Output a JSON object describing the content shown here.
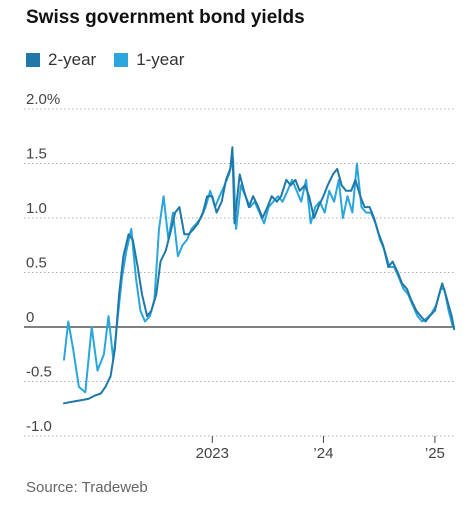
{
  "title": "Swiss government bond yields",
  "source": "Source: Tradeweb",
  "chart_data": {
    "type": "line",
    "title": "Swiss government bond yields",
    "xlabel": "",
    "ylabel": "",
    "ylim": [
      -1.0,
      2.0
    ],
    "xlim": [
      "2021-09-01",
      "2025-03-08"
    ],
    "y_ticks": [
      {
        "value": 2.0,
        "label": "2.0%"
      },
      {
        "value": 1.5,
        "label": "1.5"
      },
      {
        "value": 1.0,
        "label": "1.0"
      },
      {
        "value": 0.5,
        "label": "0.5"
      },
      {
        "value": 0,
        "label": "0"
      },
      {
        "value": -0.5,
        "label": "-0.5"
      },
      {
        "value": -1.0,
        "label": "-1.0"
      }
    ],
    "x_ticks": [
      {
        "date": "2023-01-01",
        "label": "2023"
      },
      {
        "date": "2024-01-01",
        "label": "’24"
      },
      {
        "date": "2025-01-01",
        "label": "’25"
      }
    ],
    "grid": "horizontal",
    "legend_position": "top-left",
    "series": [
      {
        "name": "2-year",
        "color": "#1f78a8",
        "points": [
          [
            "2021-09-01",
            -0.7
          ],
          [
            "2021-09-20",
            -0.69
          ],
          [
            "2021-10-10",
            -0.68
          ],
          [
            "2021-10-31",
            -0.67
          ],
          [
            "2021-11-20",
            -0.66
          ],
          [
            "2021-12-10",
            -0.63
          ],
          [
            "2021-12-31",
            -0.61
          ],
          [
            "2022-01-15",
            -0.55
          ],
          [
            "2022-02-01",
            -0.45
          ],
          [
            "2022-02-15",
            -0.2
          ],
          [
            "2022-03-01",
            0.3
          ],
          [
            "2022-03-15",
            0.65
          ],
          [
            "2022-04-01",
            0.85
          ],
          [
            "2022-04-15",
            0.8
          ],
          [
            "2022-05-01",
            0.55
          ],
          [
            "2022-05-15",
            0.3
          ],
          [
            "2022-06-01",
            0.1
          ],
          [
            "2022-06-15",
            0.15
          ],
          [
            "2022-07-01",
            0.3
          ],
          [
            "2022-07-15",
            0.6
          ],
          [
            "2022-08-01",
            0.7
          ],
          [
            "2022-08-15",
            0.85
          ],
          [
            "2022-09-01",
            1.05
          ],
          [
            "2022-09-15",
            1.1
          ],
          [
            "2022-10-01",
            0.85
          ],
          [
            "2022-10-15",
            0.85
          ],
          [
            "2022-11-01",
            0.9
          ],
          [
            "2022-11-15",
            0.95
          ],
          [
            "2022-12-01",
            1.05
          ],
          [
            "2022-12-15",
            1.2
          ],
          [
            "2023-01-01",
            1.2
          ],
          [
            "2023-01-15",
            1.05
          ],
          [
            "2023-02-01",
            1.15
          ],
          [
            "2023-02-15",
            1.35
          ],
          [
            "2023-03-01",
            1.45
          ],
          [
            "2023-03-08",
            1.65
          ],
          [
            "2023-03-15",
            0.95
          ],
          [
            "2023-04-01",
            1.4
          ],
          [
            "2023-04-15",
            1.25
          ],
          [
            "2023-05-01",
            1.1
          ],
          [
            "2023-05-15",
            1.2
          ],
          [
            "2023-06-01",
            1.1
          ],
          [
            "2023-06-15",
            1.0
          ],
          [
            "2023-07-01",
            1.1
          ],
          [
            "2023-07-15",
            1.2
          ],
          [
            "2023-08-01",
            1.15
          ],
          [
            "2023-08-15",
            1.2
          ],
          [
            "2023-09-01",
            1.35
          ],
          [
            "2023-09-15",
            1.3
          ],
          [
            "2023-10-01",
            1.35
          ],
          [
            "2023-10-15",
            1.25
          ],
          [
            "2023-11-01",
            1.3
          ],
          [
            "2023-11-15",
            1.2
          ],
          [
            "2023-12-01",
            1.0
          ],
          [
            "2023-12-15",
            1.1
          ],
          [
            "2024-01-01",
            1.2
          ],
          [
            "2024-01-15",
            1.3
          ],
          [
            "2024-02-01",
            1.4
          ],
          [
            "2024-02-15",
            1.45
          ],
          [
            "2024-03-01",
            1.3
          ],
          [
            "2024-03-15",
            1.25
          ],
          [
            "2024-04-01",
            1.25
          ],
          [
            "2024-04-15",
            1.35
          ],
          [
            "2024-05-01",
            1.2
          ],
          [
            "2024-05-15",
            1.1
          ],
          [
            "2024-06-01",
            1.1
          ],
          [
            "2024-06-15",
            1.0
          ],
          [
            "2024-07-01",
            0.85
          ],
          [
            "2024-07-15",
            0.75
          ],
          [
            "2024-08-01",
            0.55
          ],
          [
            "2024-08-15",
            0.6
          ],
          [
            "2024-09-01",
            0.5
          ],
          [
            "2024-09-15",
            0.4
          ],
          [
            "2024-10-01",
            0.35
          ],
          [
            "2024-10-15",
            0.25
          ],
          [
            "2024-11-01",
            0.15
          ],
          [
            "2024-11-15",
            0.1
          ],
          [
            "2024-12-01",
            0.05
          ],
          [
            "2024-12-15",
            0.1
          ],
          [
            "2025-01-01",
            0.15
          ],
          [
            "2025-01-15",
            0.3
          ],
          [
            "2025-01-25",
            0.4
          ],
          [
            "2025-02-05",
            0.3
          ],
          [
            "2025-02-15",
            0.2
          ],
          [
            "2025-02-25",
            0.1
          ],
          [
            "2025-03-05",
            -0.02
          ]
        ]
      },
      {
        "name": "1-year",
        "color": "#2aa6dc",
        "points": [
          [
            "2021-09-01",
            -0.3
          ],
          [
            "2021-09-15",
            0.05
          ],
          [
            "2021-10-01",
            -0.2
          ],
          [
            "2021-10-20",
            -0.55
          ],
          [
            "2021-11-10",
            -0.6
          ],
          [
            "2021-12-01",
            0.0
          ],
          [
            "2021-12-20",
            -0.4
          ],
          [
            "2022-01-10",
            -0.25
          ],
          [
            "2022-01-25",
            0.1
          ],
          [
            "2022-02-10",
            -0.3
          ],
          [
            "2022-02-25",
            0.1
          ],
          [
            "2022-03-10",
            0.45
          ],
          [
            "2022-03-25",
            0.7
          ],
          [
            "2022-04-10",
            0.9
          ],
          [
            "2022-04-25",
            0.45
          ],
          [
            "2022-05-10",
            0.15
          ],
          [
            "2022-05-25",
            0.05
          ],
          [
            "2022-06-10",
            0.1
          ],
          [
            "2022-06-25",
            0.25
          ],
          [
            "2022-07-10",
            0.9
          ],
          [
            "2022-07-25",
            1.2
          ],
          [
            "2022-08-10",
            0.8
          ],
          [
            "2022-08-25",
            1.05
          ],
          [
            "2022-09-10",
            0.65
          ],
          [
            "2022-09-25",
            0.75
          ],
          [
            "2022-10-10",
            0.8
          ],
          [
            "2022-10-25",
            0.9
          ],
          [
            "2022-11-10",
            0.95
          ],
          [
            "2022-11-25",
            1.0
          ],
          [
            "2022-12-10",
            1.1
          ],
          [
            "2022-12-25",
            1.25
          ],
          [
            "2023-01-10",
            1.1
          ],
          [
            "2023-01-25",
            1.2
          ],
          [
            "2023-02-10",
            1.3
          ],
          [
            "2023-02-25",
            1.4
          ],
          [
            "2023-03-10",
            1.55
          ],
          [
            "2023-03-20",
            0.9
          ],
          [
            "2023-04-05",
            1.3
          ],
          [
            "2023-04-20",
            1.2
          ],
          [
            "2023-05-05",
            1.1
          ],
          [
            "2023-05-20",
            1.15
          ],
          [
            "2023-06-05",
            1.05
          ],
          [
            "2023-06-20",
            0.95
          ],
          [
            "2023-07-05",
            1.1
          ],
          [
            "2023-07-20",
            1.15
          ],
          [
            "2023-08-05",
            1.2
          ],
          [
            "2023-08-20",
            1.15
          ],
          [
            "2023-09-05",
            1.25
          ],
          [
            "2023-09-20",
            1.35
          ],
          [
            "2023-10-05",
            1.25
          ],
          [
            "2023-10-20",
            1.15
          ],
          [
            "2023-11-05",
            1.35
          ],
          [
            "2023-11-20",
            0.95
          ],
          [
            "2023-12-05",
            1.1
          ],
          [
            "2023-12-20",
            1.15
          ],
          [
            "2024-01-05",
            1.05
          ],
          [
            "2024-01-20",
            1.25
          ],
          [
            "2024-02-05",
            1.15
          ],
          [
            "2024-02-20",
            1.35
          ],
          [
            "2024-03-05",
            1.0
          ],
          [
            "2024-03-20",
            1.2
          ],
          [
            "2024-04-05",
            1.05
          ],
          [
            "2024-04-20",
            1.5
          ],
          [
            "2024-05-05",
            1.1
          ],
          [
            "2024-05-20",
            1.05
          ],
          [
            "2024-06-05",
            1.05
          ],
          [
            "2024-06-20",
            0.95
          ],
          [
            "2024-07-05",
            0.8
          ],
          [
            "2024-07-20",
            0.7
          ],
          [
            "2024-08-05",
            0.55
          ],
          [
            "2024-08-20",
            0.55
          ],
          [
            "2024-09-05",
            0.45
          ],
          [
            "2024-09-20",
            0.35
          ],
          [
            "2024-10-05",
            0.3
          ],
          [
            "2024-10-20",
            0.2
          ],
          [
            "2024-11-05",
            0.1
          ],
          [
            "2024-11-20",
            0.05
          ],
          [
            "2024-12-05",
            0.08
          ],
          [
            "2024-12-20",
            0.12
          ],
          [
            "2025-01-05",
            0.2
          ],
          [
            "2025-01-20",
            0.35
          ],
          [
            "2025-02-01",
            0.35
          ],
          [
            "2025-02-15",
            0.15
          ],
          [
            "2025-03-01",
            0.0
          ]
        ]
      }
    ]
  }
}
